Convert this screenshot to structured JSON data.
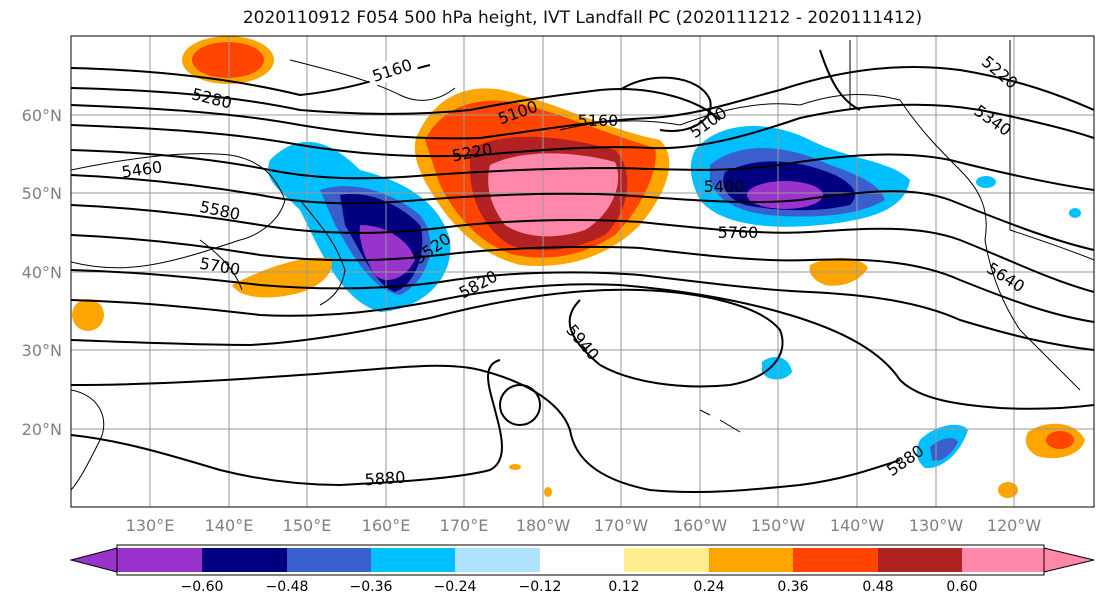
{
  "title": "2020110912 F054 500 hPa height, IVT Landfall PC (2020111212 - 2020111412)",
  "map": {
    "lat_labels": [
      "20°N",
      "30°N",
      "40°N",
      "50°N",
      "60°N"
    ],
    "lon_labels": [
      "130°E",
      "140°E",
      "150°E",
      "160°E",
      "170°E",
      "180°W",
      "170°W",
      "160°W",
      "150°W",
      "140°W",
      "130°W",
      "120°W"
    ],
    "contour_labels": [
      "5160",
      "5100",
      "5160",
      "5100",
      "5280",
      "5220",
      "5460",
      "5580",
      "5520",
      "5700",
      "5820",
      "5400",
      "5760",
      "5940",
      "5880",
      "5880",
      "5640",
      "5340",
      "5220"
    ]
  },
  "colorbar": {
    "colors": [
      "#9933cc",
      "#000080",
      "#3a5fcd",
      "#00bfff",
      "#b0e2ff",
      "#ffffff",
      "#ffec8b",
      "#ffa500",
      "#ff4500",
      "#b22222",
      "#ff88aa"
    ],
    "ticks": [
      "−0.60",
      "−0.48",
      "−0.36",
      "−0.24",
      "−0.12",
      "0.12",
      "0.24",
      "0.36",
      "0.48",
      "0.60"
    ]
  }
}
